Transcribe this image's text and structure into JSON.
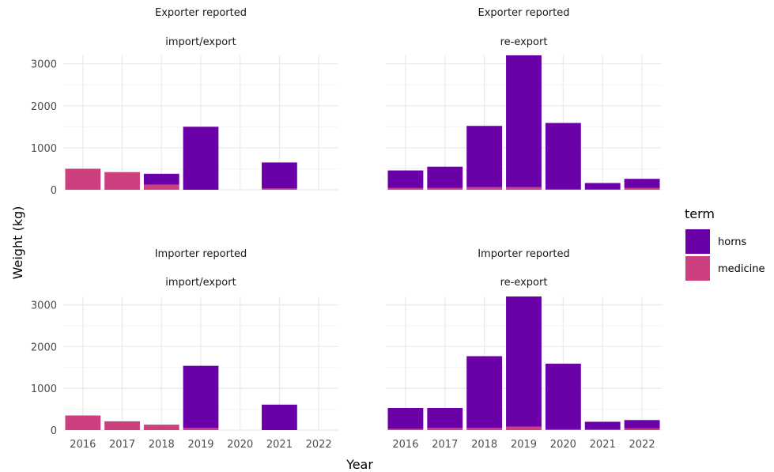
{
  "chart_data": {
    "type": "bar",
    "stacked": true,
    "xlabel": "Year",
    "ylabel": "Weight (kg)",
    "ylim": [
      0,
      3200
    ],
    "yticks": [
      0,
      1000,
      2000,
      3000
    ],
    "categories": [
      "2016",
      "2017",
      "2018",
      "2019",
      "2020",
      "2021",
      "2022"
    ],
    "grid": true,
    "legend": {
      "title": "term",
      "placement": "right",
      "entries": [
        {
          "name": "horns",
          "color": "#6a00a8"
        },
        {
          "name": "medicine",
          "color": "#cc4080"
        }
      ]
    },
    "panels": [
      {
        "strip": [
          "Exporter reported",
          "import/export"
        ],
        "series": [
          {
            "name": "medicine",
            "values": [
              500,
              420,
              120,
              0,
              0,
              30,
              0
            ]
          },
          {
            "name": "horns",
            "values": [
              0,
              0,
              260,
              1500,
              0,
              620,
              0
            ]
          }
        ]
      },
      {
        "strip": [
          "Exporter reported",
          "re-export"
        ],
        "series": [
          {
            "name": "medicine",
            "values": [
              40,
              40,
              60,
              60,
              10,
              10,
              40
            ]
          },
          {
            "name": "horns",
            "values": [
              420,
              510,
              1460,
              3140,
              1580,
              150,
              220
            ]
          }
        ]
      },
      {
        "strip": [
          "Importer reported",
          "import/export"
        ],
        "series": [
          {
            "name": "medicine",
            "values": [
              350,
              210,
              130,
              50,
              0,
              0,
              0
            ]
          },
          {
            "name": "horns",
            "values": [
              0,
              0,
              0,
              1490,
              0,
              610,
              0
            ]
          }
        ]
      },
      {
        "strip": [
          "Importer reported",
          "re-export"
        ],
        "series": [
          {
            "name": "medicine",
            "values": [
              30,
              50,
              50,
              80,
              20,
              20,
              40
            ]
          },
          {
            "name": "horns",
            "values": [
              500,
              480,
              1720,
              3120,
              1570,
              180,
              200
            ]
          }
        ]
      }
    ]
  }
}
